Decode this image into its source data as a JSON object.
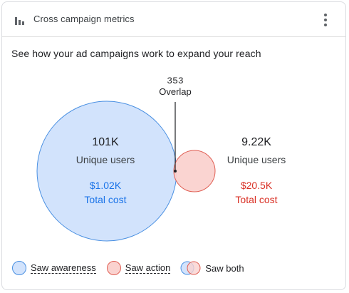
{
  "header": {
    "title": "Cross campaign metrics",
    "icon": "bar-chart-icon",
    "menu_icon": "more-vert-icon"
  },
  "subtitle": "See how your ad campaigns work to expand your reach",
  "overlap": {
    "value": "353",
    "label": "Overlap"
  },
  "awareness": {
    "users": "101K",
    "users_label": "Unique users",
    "cost": "$1.02K",
    "cost_label": "Total cost",
    "fill": "#d2e3fc",
    "stroke": "#4a90e2",
    "text_color": "#1a73e8"
  },
  "action": {
    "users": "9.22K",
    "users_label": "Unique users",
    "cost": "$20.5K",
    "cost_label": "Total cost",
    "fill": "#fad2cf",
    "stroke": "#e06055",
    "text_color": "#d93025"
  },
  "legend": {
    "awareness": "Saw awareness",
    "action": "Saw action",
    "both": "Saw both"
  }
}
